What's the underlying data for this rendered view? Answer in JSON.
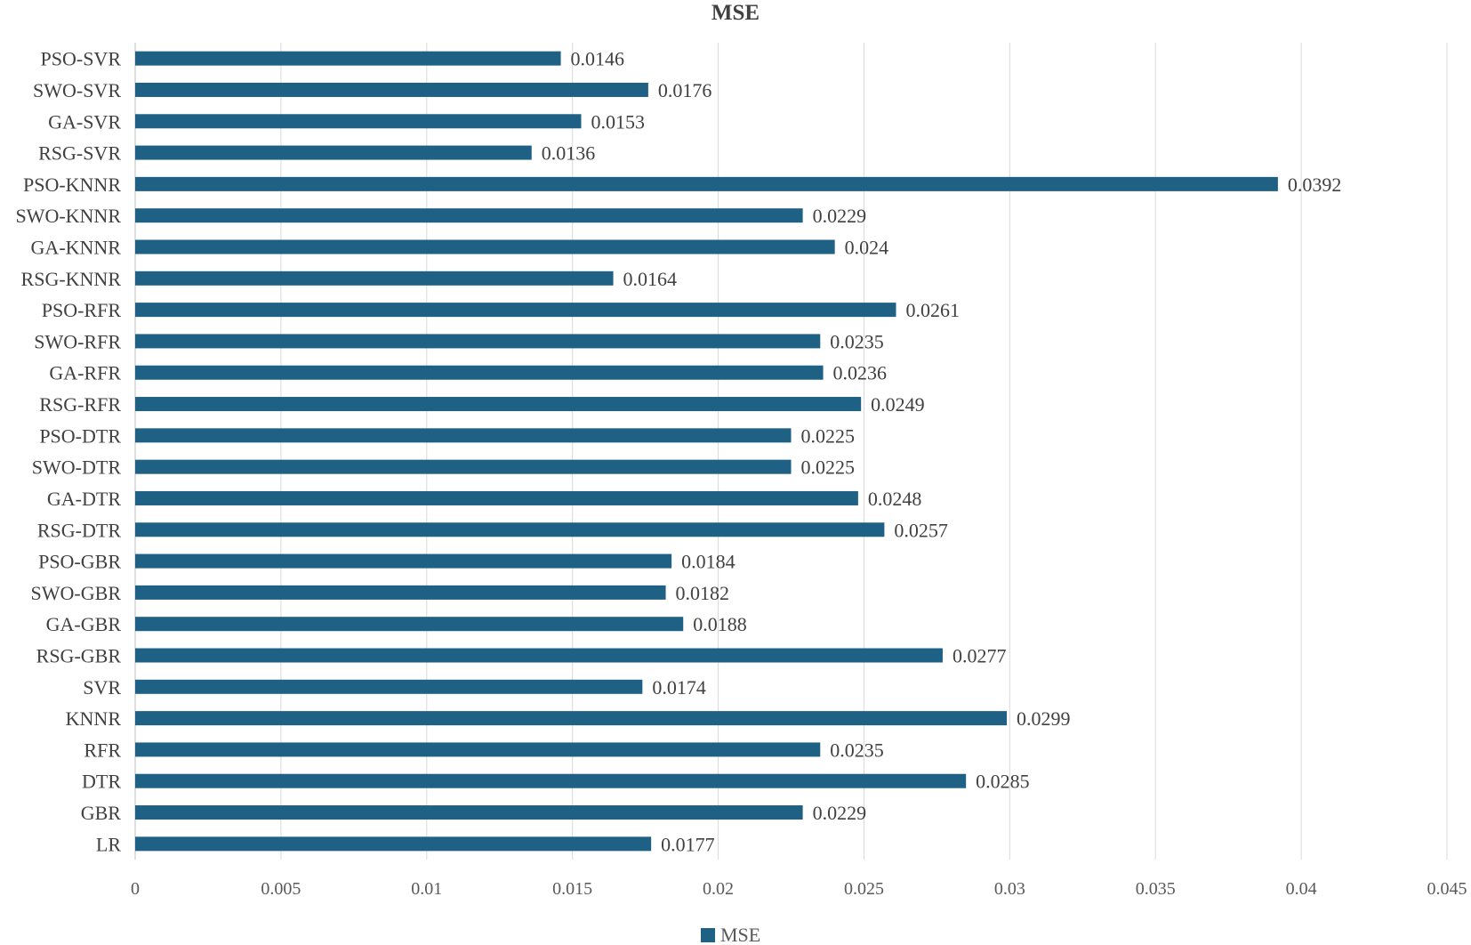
{
  "chart_data": {
    "type": "bar",
    "orientation": "horizontal",
    "title": "MSE",
    "xlabel": "",
    "ylabel": "",
    "xlim": [
      0,
      0.045
    ],
    "x_ticks": [
      "0",
      "0.005",
      "0.01",
      "0.015",
      "0.02",
      "0.025",
      "0.03",
      "0.035",
      "0.04",
      "0.045"
    ],
    "tick_values": [
      0,
      0.005,
      0.01,
      0.015,
      0.02,
      0.025,
      0.03,
      0.035,
      0.04,
      0.045
    ],
    "grid": true,
    "legend_position": "bottom",
    "categories": [
      "PSO-SVR",
      "SWO-SVR",
      "GA-SVR",
      "RSG-SVR",
      "PSO-KNNR",
      "SWO-KNNR",
      "GA-KNNR",
      "RSG-KNNR",
      "PSO-RFR",
      "SWO-RFR",
      "GA-RFR",
      "RSG-RFR",
      "PSO-DTR",
      "SWO-DTR",
      "GA-DTR",
      "RSG-DTR",
      "PSO-GBR",
      "SWO-GBR",
      "GA-GBR",
      "RSG-GBR",
      "SVR",
      "KNNR",
      "RFR",
      "DTR",
      "GBR",
      "LR"
    ],
    "series": [
      {
        "name": "MSE",
        "color": "#1f6185",
        "values": [
          0.0146,
          0.0176,
          0.0153,
          0.0136,
          0.0392,
          0.0229,
          0.024,
          0.0164,
          0.0261,
          0.0235,
          0.0236,
          0.0249,
          0.0225,
          0.0225,
          0.0248,
          0.0257,
          0.0184,
          0.0182,
          0.0188,
          0.0277,
          0.0174,
          0.0299,
          0.0235,
          0.0285,
          0.0229,
          0.0177
        ],
        "labels": [
          "0.0146",
          "0.0176",
          "0.0153",
          "0.0136",
          "0.0392",
          "0.0229",
          "0.024",
          "0.0164",
          "0.0261",
          "0.0235",
          "0.0236",
          "0.0249",
          "0.0225",
          "0.0225",
          "0.0248",
          "0.0257",
          "0.0184",
          "0.0182",
          "0.0188",
          "0.0277",
          "0.0174",
          "0.0299",
          "0.0235",
          "0.0285",
          "0.0229",
          "0.0177"
        ]
      }
    ]
  }
}
